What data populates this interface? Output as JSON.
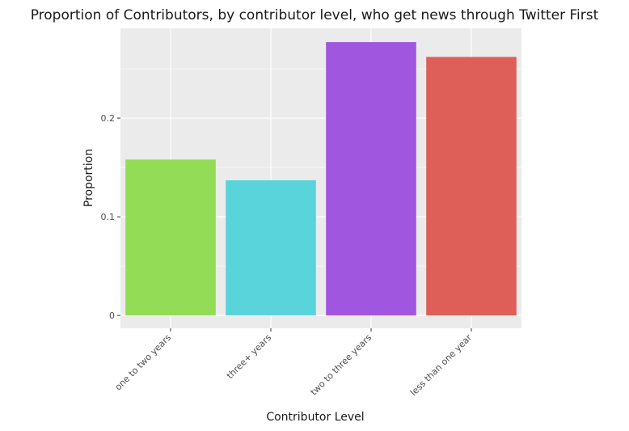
{
  "chart_data": {
    "type": "bar",
    "title": "Proportion of Contributors, by contributor level, who get news through Twitter First",
    "xlabel": "Contributor Level",
    "ylabel": "Proportion",
    "categories": [
      "one to two years",
      "three+ years",
      "two to three years",
      "less than one year"
    ],
    "values": [
      0.158,
      0.137,
      0.277,
      0.262
    ],
    "colors": [
      "#93dc56",
      "#59d4db",
      "#a156df",
      "#dd5f58"
    ],
    "yticks": [
      0,
      0.1,
      0.2
    ],
    "ytick_labels": [
      "0",
      "0.1",
      "0.2"
    ],
    "ylim": [
      -0.013,
      0.291
    ],
    "grid": true,
    "legend": "none"
  }
}
